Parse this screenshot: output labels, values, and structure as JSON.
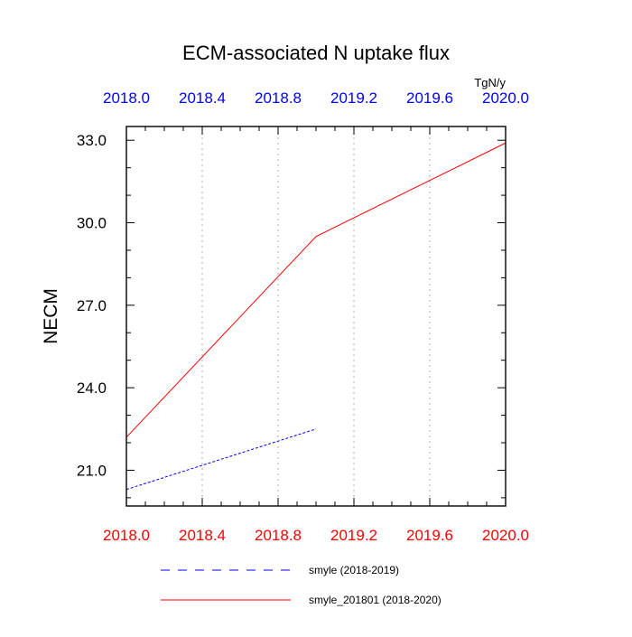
{
  "chart_data": {
    "type": "line",
    "title": "ECM-associated N uptake flux",
    "units": "TgN/y",
    "xlabel": "",
    "ylabel": "NECM",
    "xlim": [
      2018.0,
      2020.0
    ],
    "ylim": [
      19.7,
      33.5
    ],
    "x_ticks": [
      2018.0,
      2018.4,
      2018.8,
      2019.2,
      2019.6,
      2020.0
    ],
    "x_tick_labels": [
      "2018.0",
      "2018.4",
      "2018.8",
      "2019.2",
      "2019.6",
      "2020.0"
    ],
    "y_ticks": [
      21.0,
      24.0,
      27.0,
      30.0,
      33.0
    ],
    "y_tick_labels": [
      "21.0",
      "24.0",
      "27.0",
      "30.0",
      "33.0"
    ],
    "bottom_tick_color": "#ff0000",
    "top_tick_color": "#0000ff",
    "grid": "vertical-dotted",
    "legend_placement": "bottom",
    "series": [
      {
        "name": "smyle (2018-2019)",
        "color": "#0000ff",
        "dash": "dashed",
        "x": [
          2018.0,
          2019.0
        ],
        "y": [
          20.3,
          22.5
        ]
      },
      {
        "name": "smyle_201801 (2018-2020)",
        "color": "#ff0000",
        "dash": "solid",
        "x": [
          2018.0,
          2019.0,
          2020.0
        ],
        "y": [
          22.2,
          29.5,
          32.9
        ]
      }
    ]
  }
}
